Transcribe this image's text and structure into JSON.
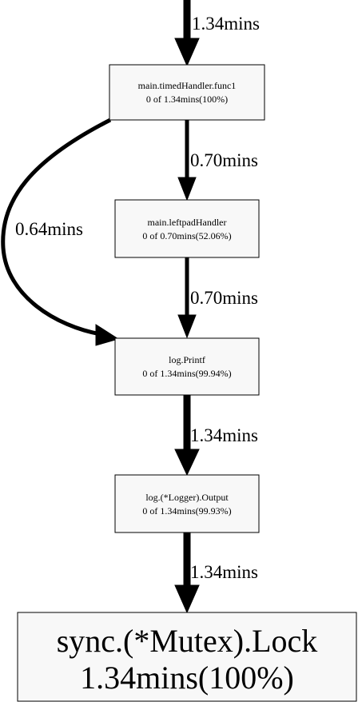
{
  "nodes": {
    "timed_handler": {
      "name": "main.timedHandler.func1",
      "stat": "0 of 1.34mins(100%)"
    },
    "leftpad_handler": {
      "name": "main.leftpadHandler",
      "stat": "0 of 0.70mins(52.06%)"
    },
    "log_printf": {
      "name": "log.Printf",
      "stat": "0 of 1.34mins(99.94%)"
    },
    "logger_output": {
      "name": "log.(*Logger).Output",
      "stat": "0 of 1.34mins(99.93%)"
    },
    "mutex_lock": {
      "name": "sync.(*Mutex).Lock",
      "stat": "1.34mins(100%)"
    }
  },
  "edges": {
    "incoming": {
      "label": "1.34mins"
    },
    "timed_to_leftpad": {
      "label": "0.70mins"
    },
    "timed_to_printf": {
      "label": "0.64mins"
    },
    "leftpad_to_printf": {
      "label": "0.70mins"
    },
    "printf_to_output": {
      "label": "1.34mins"
    },
    "output_to_lock": {
      "label": "1.34mins"
    }
  },
  "colors": {
    "node_fill": "#f8f8f8",
    "stroke": "#000000",
    "background": "#ffffff"
  }
}
